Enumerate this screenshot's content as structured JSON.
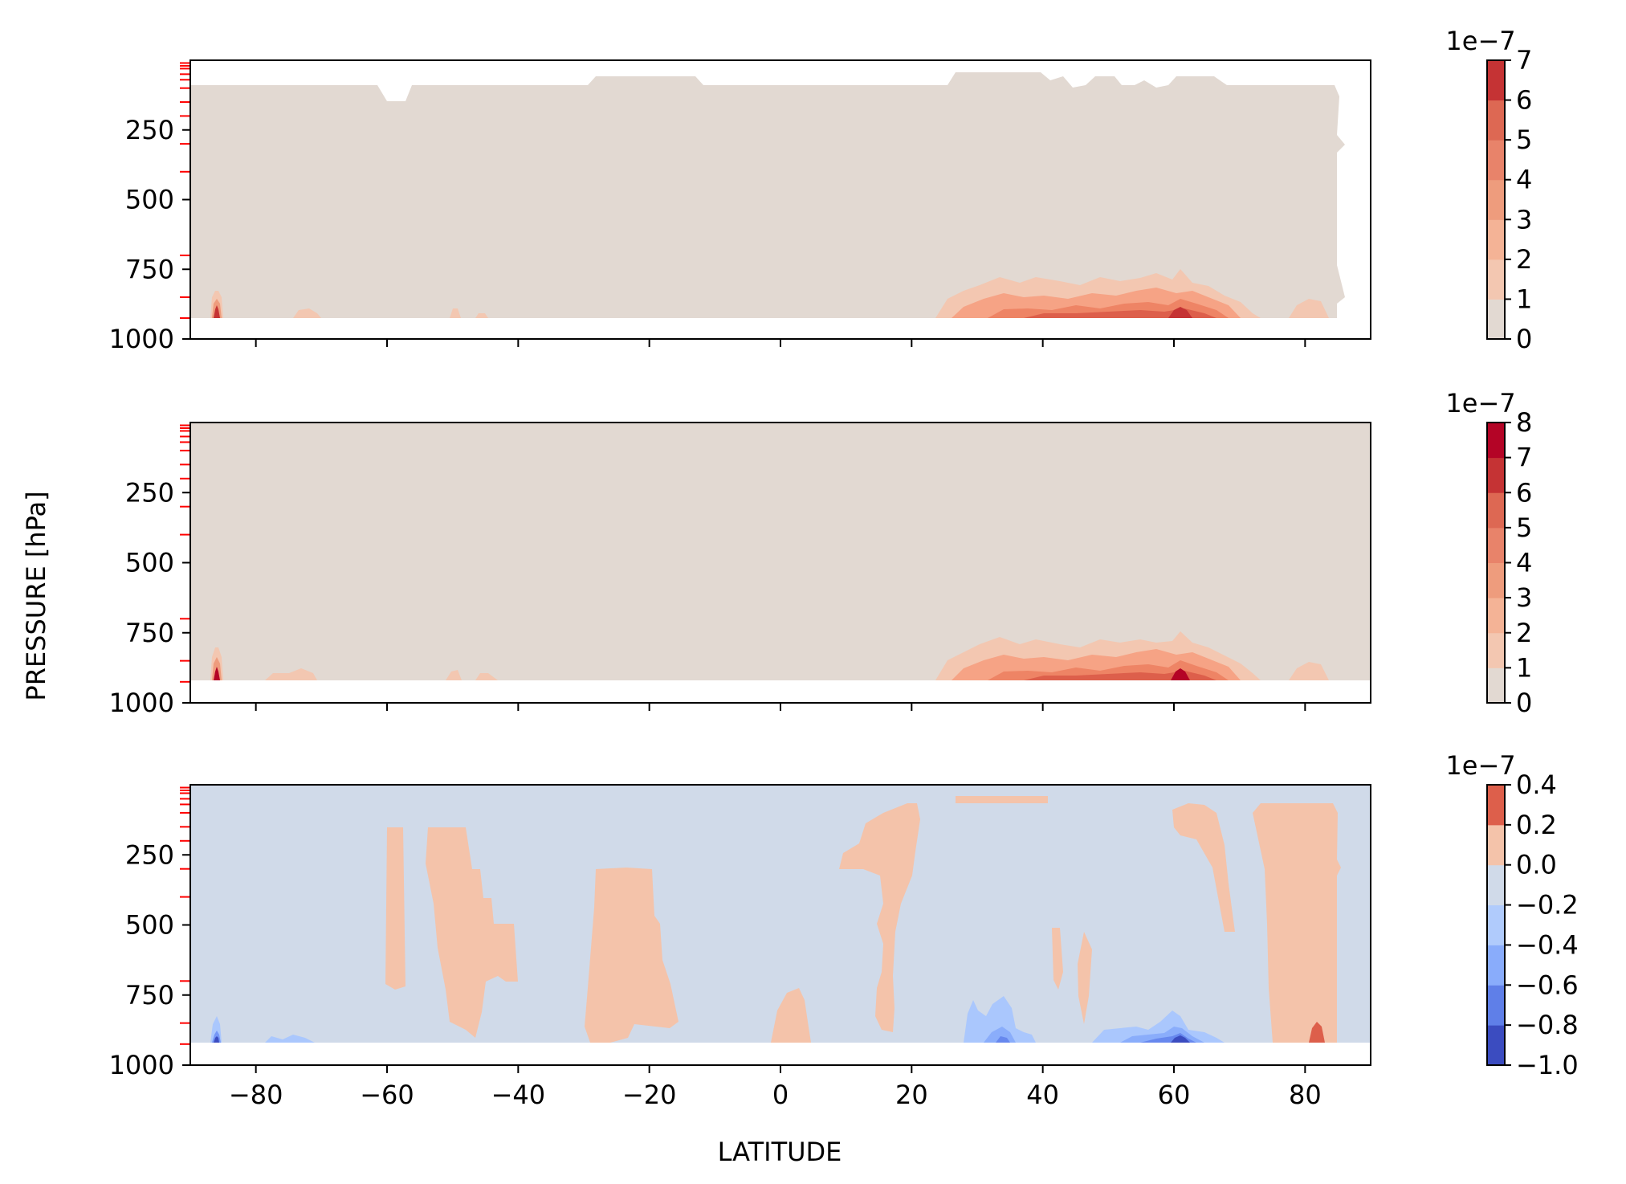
{
  "figure": {
    "ylabel": "PRESSURE [hPa]",
    "xlabel": "LATITUDE"
  },
  "chart_data": [
    {
      "type": "heatmap",
      "panel": "top",
      "xlim": [
        -90,
        90
      ],
      "ylim": [
        1000,
        0
      ],
      "xticks": [
        -80,
        -60,
        -40,
        -20,
        0,
        20,
        40,
        60,
        80
      ],
      "xtick_labels_shown": false,
      "yticks": [
        250,
        500,
        750,
        1000
      ],
      "ytick_labels": [
        "250",
        "500",
        "750",
        "1000"
      ],
      "pressure_levels_marked": [
        10,
        20,
        30,
        50,
        70,
        100,
        150,
        200,
        300,
        400,
        700,
        850,
        925
      ],
      "colorbar": {
        "levels": [
          0,
          1,
          2,
          3,
          4,
          5,
          6,
          7
        ],
        "tick_labels": [
          "0",
          "1",
          "2",
          "3",
          "4",
          "5",
          "6",
          "7"
        ],
        "exponent_label": "1e−7"
      },
      "background_level": 0,
      "hotspots": [
        {
          "lat": -85,
          "p_top": 840,
          "max_level": 6
        },
        {
          "lat": -72,
          "p_top": 905,
          "max_level": 1
        },
        {
          "lat": -50,
          "p_top": 905,
          "max_level": 1
        },
        {
          "lat": 25,
          "lat_end": 75,
          "p_top": 780,
          "max_level": 5
        },
        {
          "lat": 61,
          "p_top": 800,
          "max_level": 7
        }
      ]
    },
    {
      "type": "heatmap",
      "panel": "middle",
      "xlim": [
        -90,
        90
      ],
      "ylim": [
        1000,
        0
      ],
      "xticks": [
        -80,
        -60,
        -40,
        -20,
        0,
        20,
        40,
        60,
        80
      ],
      "xtick_labels_shown": false,
      "yticks": [
        250,
        500,
        750,
        1000
      ],
      "ytick_labels": [
        "250",
        "500",
        "750",
        "1000"
      ],
      "pressure_levels_marked": [
        10,
        20,
        30,
        50,
        70,
        100,
        150,
        200,
        300,
        400,
        700,
        850,
        925
      ],
      "colorbar": {
        "levels": [
          0,
          1,
          2,
          3,
          4,
          5,
          6,
          7,
          8
        ],
        "tick_labels": [
          "0",
          "1",
          "2",
          "3",
          "4",
          "5",
          "6",
          "7",
          "8"
        ],
        "exponent_label": "1e−7"
      },
      "background_level": 0,
      "hotspots": [
        {
          "lat": -85,
          "p_top": 820,
          "max_level": 7
        },
        {
          "lat": 25,
          "lat_end": 75,
          "p_top": 780,
          "max_level": 5
        },
        {
          "lat": 61,
          "p_top": 790,
          "max_level": 8
        }
      ]
    },
    {
      "type": "heatmap",
      "panel": "bottom",
      "xlim": [
        -90,
        90
      ],
      "ylim": [
        1000,
        0
      ],
      "xticks": [
        -80,
        -60,
        -40,
        -20,
        0,
        20,
        40,
        60,
        80
      ],
      "xtick_labels": [
        "−80",
        "−60",
        "−40",
        "−20",
        "0",
        "20",
        "40",
        "60",
        "80"
      ],
      "yticks": [
        250,
        500,
        750,
        1000
      ],
      "ytick_labels": [
        "250",
        "500",
        "750",
        "1000"
      ],
      "pressure_levels_marked": [
        10,
        20,
        30,
        50,
        70,
        100,
        150,
        200,
        300,
        400,
        700,
        850,
        925
      ],
      "colorbar": {
        "levels": [
          -1.0,
          -0.8,
          -0.6,
          -0.4,
          -0.2,
          0.0,
          0.2,
          0.4
        ],
        "tick_labels": [
          "−1.0",
          "−0.8",
          "−0.6",
          "−0.4",
          "−0.2",
          "0.0",
          "0.2",
          "0.4"
        ],
        "exponent_label": "1e−7"
      },
      "background_level": -0.1,
      "positive_regions_lat_ranges": [
        [
          -60,
          -58
        ],
        [
          -55,
          -40
        ],
        [
          -29,
          -16
        ],
        [
          0,
          7
        ],
        [
          9,
          20
        ],
        [
          29,
          37
        ],
        [
          43,
          47
        ],
        [
          60,
          70
        ],
        [
          72,
          85
        ]
      ],
      "negative_hotspots": [
        {
          "lat": -85,
          "min_level": -1.0
        },
        {
          "lat": 33,
          "min_level": -0.6
        },
        {
          "lat": 61,
          "min_level": -1.0
        }
      ],
      "max_positive": {
        "lat": 82,
        "level": 0.4
      }
    }
  ]
}
